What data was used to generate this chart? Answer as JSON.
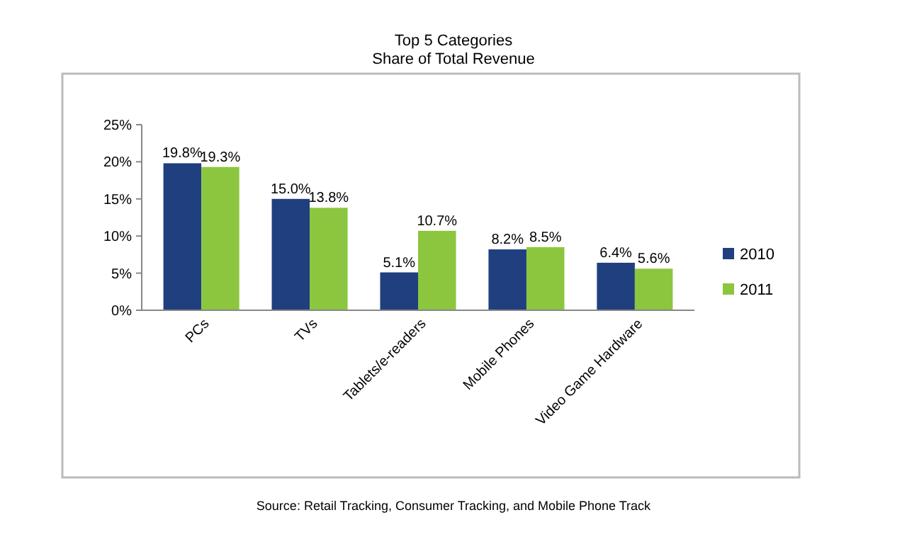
{
  "chart_data": {
    "type": "bar",
    "title": "Top 5 Categories",
    "subtitle": "Share of Total Revenue",
    "categories": [
      "PCs",
      "TVs",
      "Tablets/e-readers",
      "Mobile Phones",
      "Video Game Hardware"
    ],
    "series": [
      {
        "name": "2010",
        "color": "#1f3f7f",
        "values": [
          19.8,
          15.0,
          5.1,
          8.2,
          6.4
        ],
        "value_labels": [
          "19.8%",
          "15.0%",
          "5.1%",
          "8.2%",
          "6.4%"
        ]
      },
      {
        "name": "2011",
        "color": "#8cc63e",
        "values": [
          19.3,
          13.8,
          10.7,
          8.5,
          5.6
        ],
        "value_labels": [
          "19.3%",
          "13.8%",
          "10.7%",
          "8.5%",
          "5.6%"
        ]
      }
    ],
    "ylim": [
      0,
      25
    ],
    "yticks": [
      {
        "value": 0,
        "label": "0%"
      },
      {
        "value": 5,
        "label": "5%"
      },
      {
        "value": 10,
        "label": "10%"
      },
      {
        "value": 15,
        "label": "15%"
      },
      {
        "value": 20,
        "label": "20%"
      },
      {
        "value": 25,
        "label": "25%"
      }
    ],
    "grid": false,
    "legend": "right",
    "annotations": [
      "Source: Retail Tracking, Consumer Tracking, and Mobile Phone Track"
    ]
  }
}
